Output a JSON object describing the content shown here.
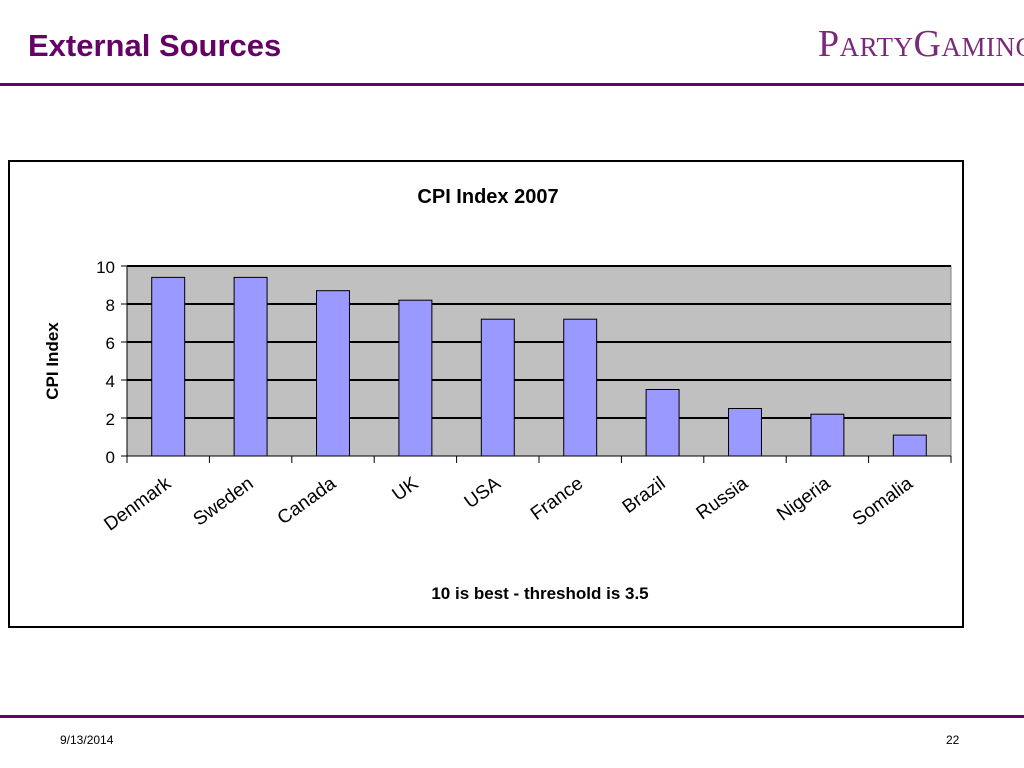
{
  "slide": {
    "title": "External Sources",
    "logo": {
      "text_a": "P",
      "text_b": "ARTY",
      "text_c": "G",
      "text_d": "AMING"
    },
    "footer_date": "9/13/2014",
    "page_number": "22"
  },
  "colors": {
    "accent": "#660066",
    "bar_fill": "#9999ff",
    "plot_bg": "#c0c0c0"
  },
  "chart_data": {
    "type": "bar",
    "title": "CPI Index 2007",
    "xlabel": "10 is best - threshold is 3.5",
    "ylabel": "CPI Index",
    "categories": [
      "Denmark",
      "Sweden",
      "Canada",
      "UK",
      "USA",
      "France",
      "Brazil",
      "Russia",
      "Nigeria",
      "Somalia"
    ],
    "values": [
      9.4,
      9.4,
      8.7,
      8.2,
      7.2,
      7.2,
      3.5,
      2.5,
      2.2,
      1.1
    ],
    "ylim": [
      0,
      10
    ],
    "yticks": [
      0,
      2,
      4,
      6,
      8,
      10
    ],
    "grid": true,
    "legend": "none"
  }
}
